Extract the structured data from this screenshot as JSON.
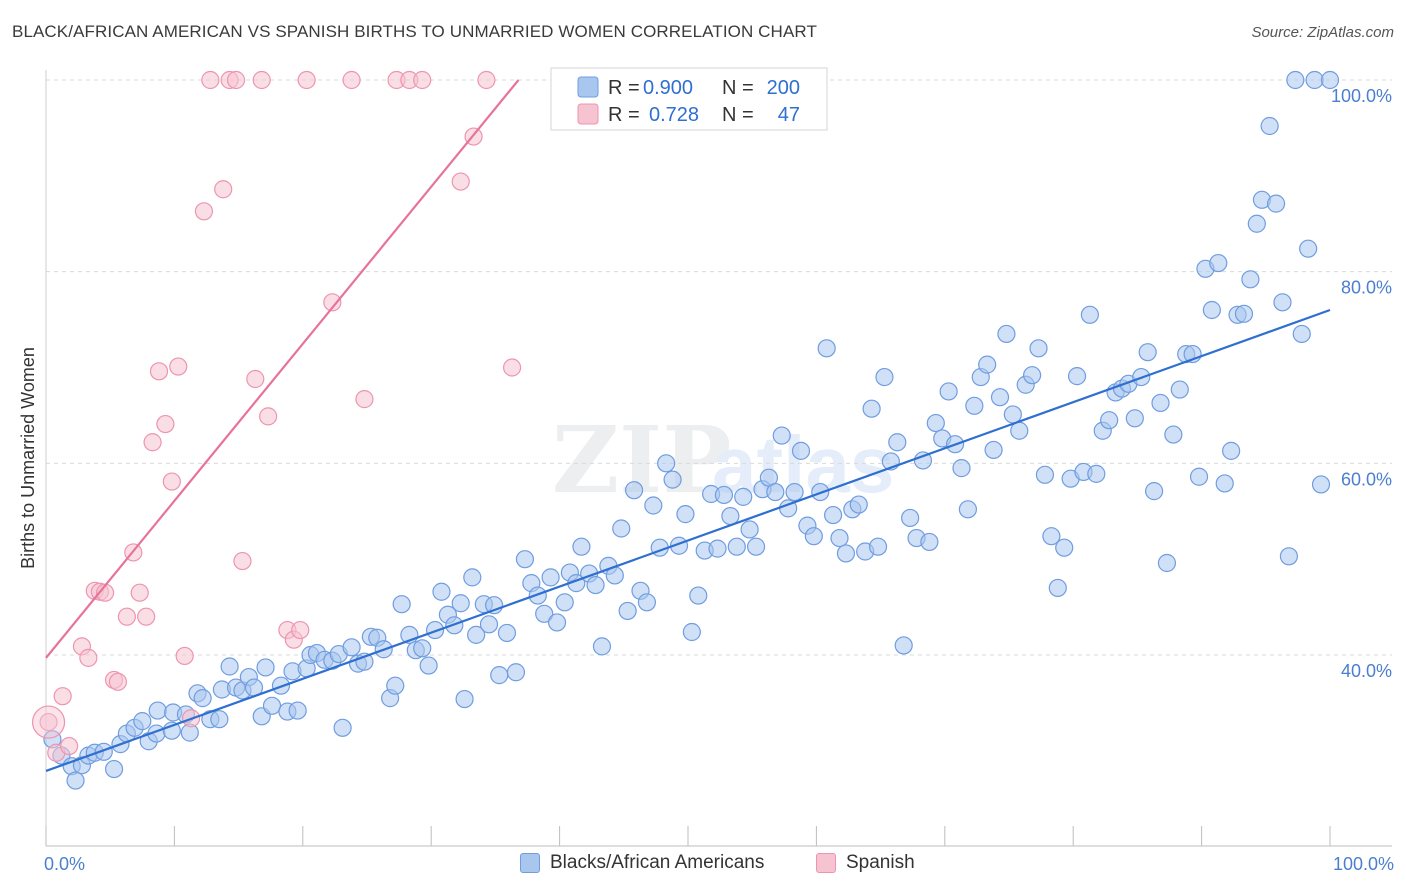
{
  "header": {
    "title": "BLACK/AFRICAN AMERICAN VS SPANISH BIRTHS TO UNMARRIED WOMEN CORRELATION CHART",
    "source": "Source: ZipAtlas.com"
  },
  "watermark": {
    "zip": "ZIP",
    "atlas": "atlas"
  },
  "colors": {
    "blue_fill": "#a9c6ef",
    "blue_stroke": "#6f9de0",
    "blue_line": "#2e6fd0",
    "pink_fill": "#f6c3d1",
    "pink_stroke": "#ee94b0",
    "pink_line": "#e8739a",
    "tick_blue": "#4a7fd0",
    "grid": "#d9d9d9"
  },
  "stats": {
    "r_label": "R =",
    "n_label": "N =",
    "blue": {
      "r": "0.900",
      "n": "200"
    },
    "pink": {
      "r": "0.728",
      "n": "47"
    }
  },
  "legend": {
    "blue": "Blacks/African Americans",
    "pink": "Spanish"
  },
  "chart_data": {
    "type": "scatter",
    "title": "BLACK/AFRICAN AMERICAN VS SPANISH BIRTHS TO UNMARRIED WOMEN CORRELATION CHART",
    "xlabel": "",
    "ylabel": "Births to Unmarried Women",
    "xlim": [
      0,
      100
    ],
    "ylim": [
      20,
      102
    ],
    "x_tick_labels": [
      "0.0%",
      "100.0%"
    ],
    "y_ticks": [
      40,
      60,
      80,
      100
    ],
    "y_tick_labels": [
      "40.0%",
      "60.0%",
      "80.0%",
      "100.0%"
    ],
    "grid": true,
    "series": [
      {
        "name": "Blacks/African Americans",
        "color": "#a9c6ef",
        "trend": {
          "x": [
            0,
            100
          ],
          "y": [
            27.9,
            76.0
          ]
        },
        "points": [
          [
            0.5,
            31.2
          ],
          [
            1.2,
            29.5
          ],
          [
            2,
            28.4
          ],
          [
            2.3,
            26.9
          ],
          [
            2.8,
            28.5
          ],
          [
            3.3,
            29.5
          ],
          [
            3.8,
            29.8
          ],
          [
            4.5,
            29.9
          ],
          [
            5.3,
            28.1
          ],
          [
            5.8,
            30.7
          ],
          [
            6.3,
            31.8
          ],
          [
            6.9,
            32.4
          ],
          [
            7.5,
            33.1
          ],
          [
            8,
            31
          ],
          [
            8.6,
            31.8
          ],
          [
            8.7,
            34.2
          ],
          [
            9.8,
            32.1
          ],
          [
            9.9,
            34.0
          ],
          [
            10.9,
            33.8
          ],
          [
            11.2,
            31.9
          ],
          [
            11.8,
            36.0
          ],
          [
            12.2,
            35.5
          ],
          [
            12.8,
            33.3
          ],
          [
            13.5,
            33.3
          ],
          [
            13.7,
            36.4
          ],
          [
            14.3,
            38.8
          ],
          [
            14.8,
            36.6
          ],
          [
            15.3,
            36.3
          ],
          [
            15.8,
            37.7
          ],
          [
            16.2,
            36.6
          ],
          [
            16.8,
            33.6
          ],
          [
            17.1,
            38.7
          ],
          [
            17.6,
            34.7
          ],
          [
            18.3,
            36.8
          ],
          [
            18.8,
            34.1
          ],
          [
            19.2,
            38.3
          ],
          [
            19.6,
            34.2
          ],
          [
            20.3,
            38.6
          ],
          [
            20.6,
            40
          ],
          [
            21.1,
            40.2
          ],
          [
            21.7,
            39.5
          ],
          [
            22.3,
            39.4
          ],
          [
            22.8,
            40.1
          ],
          [
            23.1,
            32.4
          ],
          [
            23.8,
            40.8
          ],
          [
            24.3,
            39.1
          ],
          [
            24.8,
            39.3
          ],
          [
            25.3,
            41.9
          ],
          [
            25.8,
            41.8
          ],
          [
            26.3,
            40.6
          ],
          [
            26.8,
            35.5
          ],
          [
            27.2,
            36.8
          ],
          [
            27.7,
            45.3
          ],
          [
            28.3,
            42.1
          ],
          [
            28.8,
            40.5
          ],
          [
            29.3,
            40.7
          ],
          [
            29.8,
            38.9
          ],
          [
            30.3,
            42.6
          ],
          [
            30.8,
            46.6
          ],
          [
            31.3,
            44.2
          ],
          [
            31.8,
            43.1
          ],
          [
            32.3,
            45.4
          ],
          [
            32.6,
            35.4
          ],
          [
            33.2,
            48.1
          ],
          [
            33.5,
            42.1
          ],
          [
            34.1,
            45.3
          ],
          [
            34.5,
            43.2
          ],
          [
            34.9,
            45.2
          ],
          [
            35.3,
            37.9
          ],
          [
            35.9,
            42.3
          ],
          [
            36.6,
            38.2
          ],
          [
            37.3,
            50
          ],
          [
            37.8,
            47.5
          ],
          [
            38.3,
            46.2
          ],
          [
            38.8,
            44.3
          ],
          [
            39.3,
            48.1
          ],
          [
            39.8,
            43.4
          ],
          [
            40.4,
            45.5
          ],
          [
            40.8,
            48.6
          ],
          [
            41.3,
            47.5
          ],
          [
            41.7,
            51.3
          ],
          [
            42.3,
            48.5
          ],
          [
            42.8,
            47.3
          ],
          [
            43.3,
            40.9
          ],
          [
            43.8,
            49.3
          ],
          [
            44.3,
            48.3
          ],
          [
            44.8,
            53.2
          ],
          [
            45.3,
            44.6
          ],
          [
            45.8,
            57.2
          ],
          [
            46.3,
            46.7
          ],
          [
            46.8,
            45.5
          ],
          [
            47.3,
            55.6
          ],
          [
            47.8,
            51.2
          ],
          [
            48.3,
            60
          ],
          [
            48.8,
            58.3
          ],
          [
            49.3,
            51.4
          ],
          [
            49.8,
            54.7
          ],
          [
            50.3,
            42.4
          ],
          [
            50.8,
            46.2
          ],
          [
            51.3,
            50.9
          ],
          [
            51.8,
            56.8
          ],
          [
            52.3,
            51.1
          ],
          [
            52.8,
            56.7
          ],
          [
            53.3,
            54.5
          ],
          [
            53.8,
            51.3
          ],
          [
            54.3,
            56.5
          ],
          [
            54.8,
            53.1
          ],
          [
            55.3,
            51.3
          ],
          [
            55.8,
            57.3
          ],
          [
            56.3,
            58.5
          ],
          [
            56.8,
            57
          ],
          [
            57.3,
            62.9
          ],
          [
            57.8,
            55.3
          ],
          [
            58.3,
            57.0
          ],
          [
            58.8,
            61.3
          ],
          [
            59.3,
            53.5
          ],
          [
            59.8,
            52.4
          ],
          [
            60.3,
            57
          ],
          [
            60.8,
            72
          ],
          [
            61.3,
            54.6
          ],
          [
            61.8,
            52.2
          ],
          [
            62.3,
            50.6
          ],
          [
            62.8,
            55.2
          ],
          [
            63.3,
            55.7
          ],
          [
            63.8,
            50.8
          ],
          [
            64.3,
            65.7
          ],
          [
            64.8,
            51.3
          ],
          [
            65.3,
            69
          ],
          [
            65.8,
            60.2
          ],
          [
            66.3,
            62.2
          ],
          [
            66.8,
            41
          ],
          [
            67.3,
            54.3
          ],
          [
            67.8,
            52.2
          ],
          [
            68.3,
            60.3
          ],
          [
            68.8,
            51.8
          ],
          [
            69.3,
            64.2
          ],
          [
            69.8,
            62.6
          ],
          [
            70.3,
            67.5
          ],
          [
            70.8,
            62
          ],
          [
            71.3,
            59.5
          ],
          [
            71.8,
            55.2
          ],
          [
            72.3,
            66
          ],
          [
            72.8,
            69
          ],
          [
            73.3,
            70.3
          ],
          [
            73.8,
            61.4
          ],
          [
            74.3,
            66.9
          ],
          [
            74.8,
            73.5
          ],
          [
            75.3,
            65.1
          ],
          [
            75.8,
            63.4
          ],
          [
            76.3,
            68.2
          ],
          [
            76.8,
            69.2
          ],
          [
            77.3,
            72.0
          ],
          [
            77.8,
            58.8
          ],
          [
            78.3,
            52.4
          ],
          [
            78.8,
            47.0
          ],
          [
            79.3,
            51.2
          ],
          [
            79.8,
            58.4
          ],
          [
            80.3,
            69.1
          ],
          [
            80.8,
            59.1
          ],
          [
            81.3,
            75.5
          ],
          [
            81.8,
            58.9
          ],
          [
            82.3,
            63.4
          ],
          [
            82.8,
            64.5
          ],
          [
            83.3,
            67.4
          ],
          [
            83.8,
            67.8
          ],
          [
            84.3,
            68.3
          ],
          [
            84.8,
            64.7
          ],
          [
            85.3,
            69
          ],
          [
            85.8,
            71.6
          ],
          [
            86.3,
            57.1
          ],
          [
            86.8,
            66.3
          ],
          [
            87.3,
            49.6
          ],
          [
            87.8,
            63
          ],
          [
            88.3,
            67.7
          ],
          [
            88.8,
            71.4
          ],
          [
            89.3,
            71.4
          ],
          [
            89.8,
            58.6
          ],
          [
            90.3,
            80.3
          ],
          [
            90.8,
            76
          ],
          [
            91.3,
            80.9
          ],
          [
            91.8,
            57.9
          ],
          [
            92.3,
            61.3
          ],
          [
            92.8,
            75.5
          ],
          [
            93.3,
            75.6
          ],
          [
            93.8,
            79.2
          ],
          [
            94.3,
            85
          ],
          [
            94.7,
            87.5
          ],
          [
            95.3,
            95.2
          ],
          [
            95.8,
            87.1
          ],
          [
            96.3,
            76.8
          ],
          [
            96.8,
            50.3
          ],
          [
            97.3,
            100
          ],
          [
            97.8,
            73.5
          ],
          [
            98.3,
            82.4
          ],
          [
            98.8,
            100
          ],
          [
            99.3,
            57.8
          ],
          [
            100,
            100
          ]
        ]
      },
      {
        "name": "Spanish",
        "color": "#f6c3d1",
        "trend": {
          "x": [
            0,
            36.8
          ],
          "y": [
            39.7,
            100.0
          ]
        },
        "points": [
          [
            0.2,
            33
          ],
          [
            0.8,
            29.8
          ],
          [
            1.3,
            35.7
          ],
          [
            1.8,
            30.5
          ],
          [
            2.8,
            40.9
          ],
          [
            3.3,
            39.7
          ],
          [
            3.8,
            46.7
          ],
          [
            4.2,
            46.6
          ],
          [
            4.6,
            46.5
          ],
          [
            5.3,
            37.4
          ],
          [
            5.6,
            37.2
          ],
          [
            6.3,
            44
          ],
          [
            6.8,
            50.7
          ],
          [
            7.3,
            46.5
          ],
          [
            7.8,
            44
          ],
          [
            8.3,
            62.2
          ],
          [
            8.8,
            69.6
          ],
          [
            9.3,
            64.1
          ],
          [
            9.8,
            58.1
          ],
          [
            10.3,
            70.1
          ],
          [
            10.8,
            39.9
          ],
          [
            11.3,
            33.4
          ],
          [
            12.3,
            86.3
          ],
          [
            12.8,
            100
          ],
          [
            13.8,
            88.6
          ],
          [
            14.3,
            100
          ],
          [
            14.8,
            100
          ],
          [
            15.3,
            49.8
          ],
          [
            16.3,
            68.8
          ],
          [
            16.8,
            100
          ],
          [
            17.3,
            64.9
          ],
          [
            18.8,
            42.6
          ],
          [
            19.3,
            41.6
          ],
          [
            19.8,
            42.6
          ],
          [
            20.3,
            100
          ],
          [
            22.3,
            76.8
          ],
          [
            23.8,
            100
          ],
          [
            24.8,
            66.7
          ],
          [
            27.3,
            100
          ],
          [
            28.3,
            100
          ],
          [
            29.3,
            100
          ],
          [
            32.3,
            89.4
          ],
          [
            33.3,
            94.1
          ],
          [
            34.3,
            100
          ],
          [
            36.3,
            70
          ]
        ]
      }
    ]
  }
}
